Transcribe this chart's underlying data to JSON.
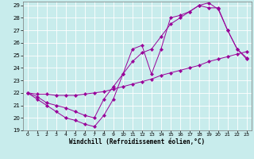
{
  "bg_color": "#c8ecec",
  "line_color": "#990099",
  "grid_color": "#aadddd",
  "xlim": [
    -0.5,
    23.5
  ],
  "ylim": [
    19,
    29.3
  ],
  "xticks": [
    0,
    1,
    2,
    3,
    4,
    5,
    6,
    7,
    8,
    9,
    10,
    11,
    12,
    13,
    14,
    15,
    16,
    17,
    18,
    19,
    20,
    21,
    22,
    23
  ],
  "yticks": [
    19,
    20,
    21,
    22,
    23,
    24,
    25,
    26,
    27,
    28,
    29
  ],
  "xlabel": "Windchill (Refroidissement éolien,°C)",
  "line1_x": [
    0,
    1,
    2,
    3,
    4,
    5,
    6,
    7,
    8,
    9,
    10,
    11,
    12,
    13,
    14,
    15,
    16,
    17,
    18,
    19,
    20,
    21,
    22,
    23
  ],
  "line1_y": [
    22.0,
    21.5,
    21.0,
    20.5,
    20.0,
    19.8,
    19.5,
    19.3,
    20.2,
    21.5,
    23.5,
    25.5,
    25.8,
    23.5,
    25.5,
    28.0,
    28.2,
    28.5,
    29.0,
    28.8,
    28.8,
    27.0,
    25.5,
    24.7
  ],
  "line2_x": [
    0,
    1,
    2,
    3,
    4,
    5,
    6,
    7,
    8,
    9,
    10,
    11,
    12,
    13,
    14,
    15,
    16,
    17,
    18,
    19,
    20,
    21,
    22,
    23
  ],
  "line2_y": [
    22.0,
    21.7,
    21.2,
    21.0,
    20.8,
    20.5,
    20.2,
    20.0,
    21.5,
    22.5,
    23.5,
    24.5,
    25.2,
    25.5,
    26.5,
    27.5,
    28.0,
    28.5,
    29.0,
    29.2,
    28.7,
    27.0,
    25.5,
    24.8
  ],
  "line3_x": [
    0,
    1,
    2,
    3,
    4,
    5,
    6,
    7,
    8,
    9,
    10,
    11,
    12,
    13,
    14,
    15,
    16,
    17,
    18,
    19,
    20,
    21,
    22,
    23
  ],
  "line3_y": [
    22.0,
    21.9,
    21.9,
    21.8,
    21.8,
    21.8,
    21.9,
    22.0,
    22.1,
    22.3,
    22.5,
    22.7,
    22.9,
    23.1,
    23.4,
    23.6,
    23.8,
    24.0,
    24.2,
    24.5,
    24.7,
    24.9,
    25.1,
    25.3
  ]
}
